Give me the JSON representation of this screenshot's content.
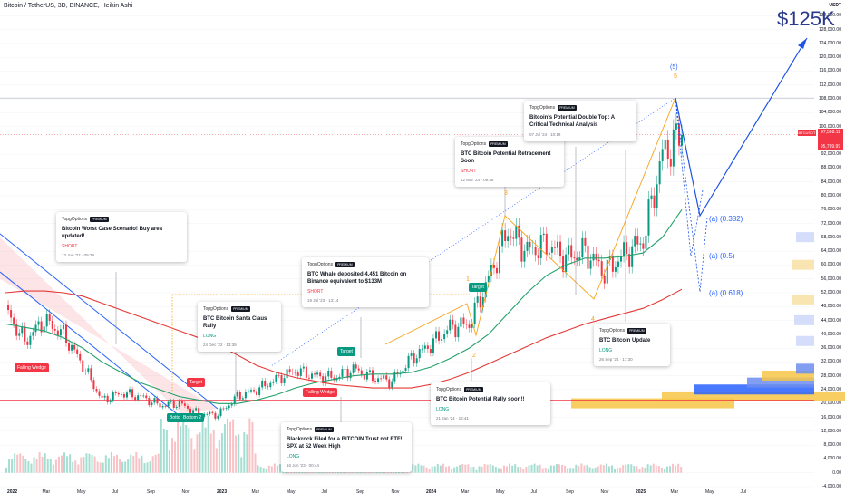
{
  "header": {
    "title": "Bitcoin / TetherUS, 3D, BINANCE, Heikin Ashi",
    "currency": "USDT"
  },
  "price_axis": {
    "labels": [
      "132,000.00",
      "128,000.00",
      "124,000.00",
      "120,000.00",
      "116,000.00",
      "112,000.00",
      "108,000.00",
      "104,000.00",
      "100,000.00",
      "96,000.00",
      "92,000.00",
      "88,000.00",
      "84,000.00",
      "80,000.00",
      "76,000.00",
      "72,000.00",
      "68,000.00",
      "64,000.00",
      "60,000.00",
      "56,000.00",
      "52,000.00",
      "48,000.00",
      "44,000.00",
      "40,000.00",
      "36,000.00",
      "32,000.00",
      "28,000.00",
      "24,000.00",
      "20,000.00",
      "16,000.00",
      "12,000.00",
      "8,000.00",
      "4,000.00",
      "0.00",
      "-4,000.00"
    ],
    "current_symbol": "BTCUSDT",
    "current_price": "97,598.11",
    "current_price_lower": "95,799.99"
  },
  "time_axis": {
    "labels": [
      "2022",
      "Mar",
      "May",
      "Jul",
      "Sep",
      "Nov",
      "2023",
      "Mar",
      "May",
      "Jul",
      "Sep",
      "Nov",
      "2024",
      "Mar",
      "May",
      "Jul",
      "Sep",
      "Nov",
      "2025",
      "Mar",
      "May",
      "Jul"
    ]
  },
  "target_label": "$125K",
  "fib_levels": [
    {
      "label": "(a) (0.382)",
      "price": 72000
    },
    {
      "label": "(a) (0.5)",
      "price": 63000
    },
    {
      "label": "(a) (0.618)",
      "price": 53000
    }
  ],
  "wave_labels": {
    "top_wave": "(5)",
    "top_wave_sub": "5",
    "w1": "1",
    "w2": "2",
    "w3": "3",
    "w4": "4"
  },
  "pattern_tags": [
    {
      "id": "falling-wedge-1",
      "label": "Falling Wedge",
      "color": "red"
    },
    {
      "id": "falling-wedge-2",
      "label": "Falling Wedge",
      "color": "red"
    },
    {
      "id": "target-1",
      "label": "Target",
      "color": "red"
    },
    {
      "id": "target-2",
      "label": "Target",
      "color": "green"
    },
    {
      "id": "target-3",
      "label": "Target",
      "color": "green"
    },
    {
      "id": "bottom-1",
      "label": "Bottom",
      "color": "green"
    },
    {
      "id": "bottom-2",
      "label": "Bottom 2",
      "color": "green"
    }
  ],
  "ideas": [
    {
      "author": "TopgOptions",
      "badge": "PREMIUM",
      "title": "Bitcoin Worst Case Scenario! Buy area updated!",
      "side": "SHORT",
      "date": "13 Jun '22 · 09:39"
    },
    {
      "author": "TopgOptions",
      "badge": "PREMIUM",
      "title": "BTC Bitcoin Santa Claus Rally",
      "side": "LONG",
      "date": "24 Dec '22 · 13:39"
    },
    {
      "author": "TopgOptions",
      "badge": "PREMIUM",
      "title": "BTC Whale deposited 4,451 Bitcoin on Binance equivalent to $133M",
      "side": "SHORT",
      "date": "19 Jul '23 · 13:14"
    },
    {
      "author": "TopgOptions",
      "badge": "PREMIUM",
      "title": "Blackrock Filed for a BITCOIN Trust not ETF! SPX at 52 Week High",
      "side": "LONG",
      "date": "16 Jun '23 · 00:44"
    },
    {
      "author": "TopgOptions",
      "badge": "PREMIUM",
      "title": "BTC Bitcoin Potential Rally soon!!",
      "side": "LONG",
      "date": "21 Jan '24 · 13:41"
    },
    {
      "author": "TopgOptions",
      "badge": "PREMIUM",
      "title": "BTC Bitcoin Potential Retracement Soon",
      "side": "SHORT",
      "date": "12 Mar '24 · 09:48"
    },
    {
      "author": "TopgOptions",
      "badge": "PREMIUM",
      "title": "Bitcoin's Potential Double Top: A Critical Technical Analysis",
      "side": "",
      "date": "07 Jul '24 · 10:19"
    },
    {
      "author": "TopgOptions",
      "badge": "PREMIUM",
      "title": "BTC Bitcoin Update",
      "side": "LONG",
      "date": "26 Sep '24 · 17:30"
    }
  ],
  "colors": {
    "up": "#089981",
    "down": "#f23645",
    "ma_green": "#22a06b",
    "ma_red": "#e53935",
    "ma_blue": "#2962ff",
    "wave": "#f7a21b",
    "arrow": "#1e53e5"
  },
  "chart_data": {
    "type": "candlestick",
    "title": "Bitcoin / TetherUS, 3D, BINANCE, Heikin Ashi",
    "ylim": [
      -4000,
      136000
    ],
    "x": [
      "2022-01",
      "2022-02",
      "2022-03",
      "2022-04",
      "2022-05",
      "2022-06",
      "2022-07",
      "2022-08",
      "2022-09",
      "2022-10",
      "2022-11",
      "2022-12",
      "2023-01",
      "2023-02",
      "2023-03",
      "2023-04",
      "2023-05",
      "2023-06",
      "2023-07",
      "2023-08",
      "2023-09",
      "2023-10",
      "2023-11",
      "2023-12",
      "2024-01",
      "2024-02",
      "2024-03",
      "2024-04",
      "2024-05",
      "2024-06",
      "2024-07",
      "2024-08",
      "2024-09",
      "2024-10",
      "2024-11",
      "2024-12"
    ],
    "close": [
      47000,
      38000,
      44000,
      40000,
      31000,
      21000,
      23000,
      22000,
      19500,
      20000,
      17000,
      16800,
      22000,
      24000,
      27000,
      29500,
      28000,
      27500,
      30000,
      27500,
      26500,
      33000,
      37000,
      42000,
      43000,
      56000,
      70000,
      64000,
      66000,
      62000,
      64000,
      58000,
      63000,
      67000,
      92000,
      97598
    ],
    "series": [
      {
        "name": "MA green",
        "values": [
          43000,
          42000,
          41000,
          39000,
          36000,
          32000,
          29000,
          26000,
          24000,
          22000,
          21000,
          20000,
          20000,
          21000,
          22500,
          24500,
          26000,
          27000,
          28000,
          28500,
          28500,
          29000,
          30500,
          33000,
          36000,
          40000,
          46000,
          52000,
          57000,
          60000,
          62000,
          62000,
          62500,
          63500,
          68000,
          76000
        ]
      },
      {
        "name": "MA red",
        "values": [
          52000,
          52500,
          52500,
          52000,
          51000,
          49000,
          47000,
          45000,
          43000,
          41000,
          39000,
          37000,
          34000,
          31000,
          29000,
          27500,
          26500,
          25500,
          25000,
          24500,
          24500,
          24500,
          25500,
          27000,
          29000,
          31500,
          34000,
          36500,
          39000,
          41000,
          43000,
          44500,
          46000,
          47500,
          50000,
          53000
        ]
      }
    ]
  }
}
